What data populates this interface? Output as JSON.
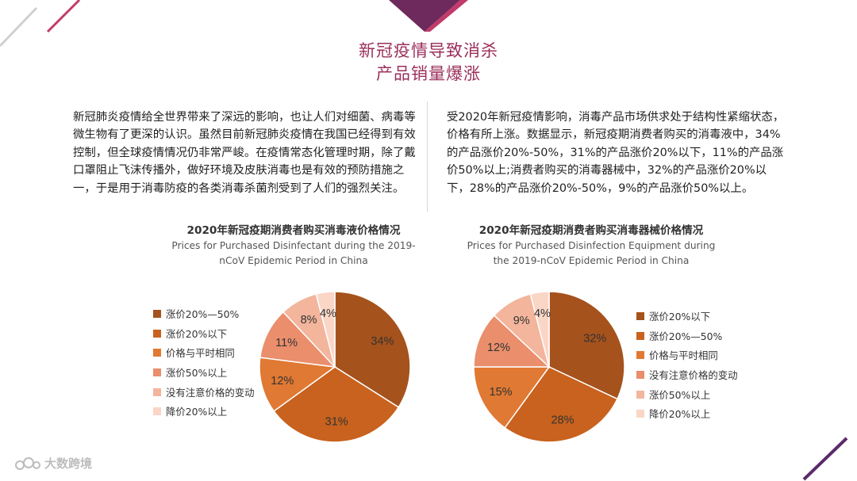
{
  "title": {
    "line1": "新冠疫情导致消杀",
    "line2": "产品销量爆涨"
  },
  "paragraphs": {
    "left": "新冠肺炎疫情给全世界带来了深远的影响，也让人们对细菌、病毒等微生物有了更深的认识。虽然目前新冠肺炎疫情在我国已经得到有效控制，但全球疫情情况仍非常严峻。在疫情常态化管理时期，除了戴口罩阻止飞沫传播外，做好环境及皮肤消毒也是有效的预防措施之一，于是用于消毒防疫的各类消毒杀菌剂受到了人们的强烈关注。",
    "right": "受2020年新冠疫情影响，消毒产品市场供求处于结构性紧缩状态，价格有所上涨。数据显示，新冠疫期消费者购买的消毒液中，34%的产品涨价20%-50%，31%的产品涨价20%以下，11%的产品涨价50%以上;消费者购买的消毒器械中，32%的产品涨价20%以下，28%的产品涨价20%-50%，9%的产品涨价50%以上。"
  },
  "watermark": "大数跨境",
  "chart_data": [
    {
      "type": "pie",
      "title": "2020年新冠疫期消费者购买消毒液价格情况",
      "subtitle_line1": "Prices for Purchased Disinfectant during the 2019-",
      "subtitle_line2": "nCoV Epidemic Period in China",
      "categories": [
        "涨价20%—50%",
        "涨价20%以下",
        "价格与平时相同",
        "涨价50%以上",
        "没有注意价格的变动",
        "降价20%以上"
      ],
      "values": [
        34,
        31,
        12,
        11,
        8,
        4
      ],
      "labels": [
        "34%",
        "31%",
        "12%",
        "11%",
        "8%",
        "4%"
      ],
      "colors": [
        "#a5521c",
        "#c8621e",
        "#e07933",
        "#ea8e6c",
        "#f3b59c",
        "#fad6c7"
      ],
      "legend_position": "left"
    },
    {
      "type": "pie",
      "title": "2020年新冠疫期消费者购买消毒器械价格情况",
      "subtitle_line1": "Prices for Purchased Disinfection Equipment during",
      "subtitle_line2": "the 2019-nCoV Epidemic Period in China",
      "categories": [
        "涨价20%以下",
        "涨价20%—50%",
        "价格与平时相同",
        "没有注意价格的变动",
        "涨价50%以上",
        "降价20%以上"
      ],
      "values": [
        32,
        28,
        15,
        12,
        9,
        4
      ],
      "labels": [
        "32%",
        "28%",
        "15%",
        "12%",
        "9%",
        "4%"
      ],
      "colors": [
        "#a5521c",
        "#c8621e",
        "#e07933",
        "#ea8e6c",
        "#f3b59c",
        "#fad6c7"
      ],
      "legend_position": "right"
    }
  ]
}
